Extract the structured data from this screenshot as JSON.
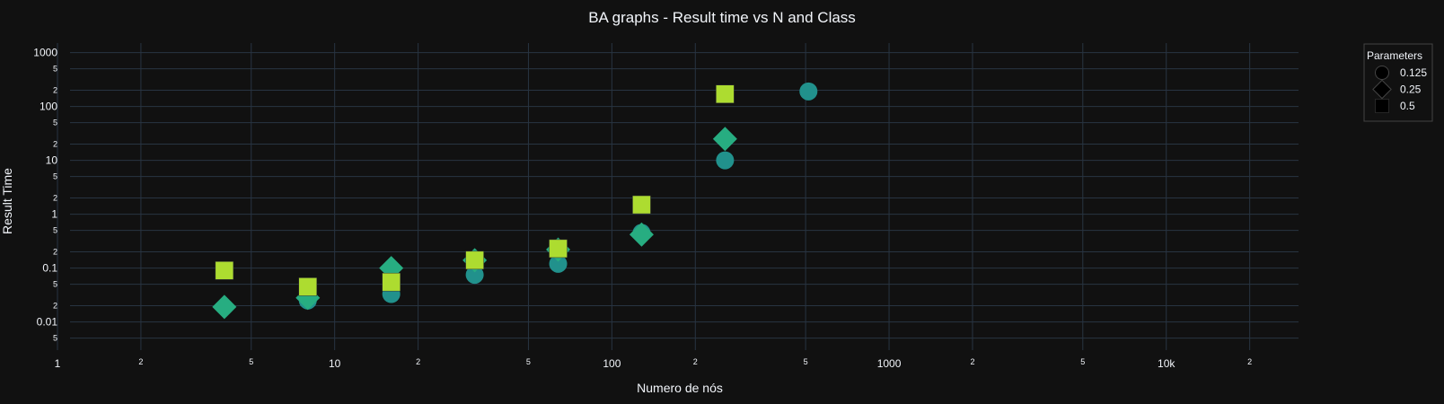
{
  "chart_data": {
    "type": "scatter",
    "title": "BA graphs - Result time vs N and Class",
    "xlabel": "Numero de nós",
    "ylabel": "Result Time",
    "x_scale": "log",
    "y_scale": "log",
    "xlim": [
      1,
      30000
    ],
    "ylim": [
      0.003,
      1500
    ],
    "grid": true,
    "legend_title": "Parameters",
    "legend_position": "top-right",
    "x_ticks": {
      "major": [
        {
          "v": 1,
          "label": "1"
        },
        {
          "v": 10,
          "label": "10"
        },
        {
          "v": 100,
          "label": "100"
        },
        {
          "v": 1000,
          "label": "1000"
        },
        {
          "v": 10000,
          "label": "10k"
        }
      ],
      "minor": [
        {
          "v": 2,
          "label": "2"
        },
        {
          "v": 5,
          "label": "5"
        },
        {
          "v": 20,
          "label": "2"
        },
        {
          "v": 50,
          "label": "5"
        },
        {
          "v": 200,
          "label": "2"
        },
        {
          "v": 500,
          "label": "5"
        },
        {
          "v": 2000,
          "label": "2"
        },
        {
          "v": 5000,
          "label": "5"
        },
        {
          "v": 20000,
          "label": "2"
        }
      ]
    },
    "y_ticks": {
      "major": [
        {
          "v": 0.01,
          "label": "0.01"
        },
        {
          "v": 0.1,
          "label": "0.1"
        },
        {
          "v": 1,
          "label": "1"
        },
        {
          "v": 10,
          "label": "10"
        },
        {
          "v": 100,
          "label": "100"
        },
        {
          "v": 1000,
          "label": "1000"
        }
      ],
      "minor": [
        {
          "v": 0.005,
          "label": "5"
        },
        {
          "v": 0.02,
          "label": "2"
        },
        {
          "v": 0.05,
          "label": "5"
        },
        {
          "v": 0.2,
          "label": "2"
        },
        {
          "v": 0.5,
          "label": "5"
        },
        {
          "v": 2,
          "label": "2"
        },
        {
          "v": 5,
          "label": "5"
        },
        {
          "v": 20,
          "label": "2"
        },
        {
          "v": 50,
          "label": "5"
        },
        {
          "v": 200,
          "label": "2"
        },
        {
          "v": 500,
          "label": "5"
        }
      ]
    },
    "series": [
      {
        "name": "0.125",
        "symbol": "circle",
        "color": "#21918c",
        "points": [
          [
            8,
            0.025
          ],
          [
            16,
            0.033
          ],
          [
            32,
            0.075
          ],
          [
            64,
            0.12
          ],
          [
            128,
            0.45
          ],
          [
            256,
            10
          ],
          [
            512,
            190
          ]
        ]
      },
      {
        "name": "0.25",
        "symbol": "diamond",
        "color": "#27ad81",
        "points": [
          [
            4,
            0.019
          ],
          [
            8,
            0.028
          ],
          [
            16,
            0.1
          ],
          [
            32,
            0.14
          ],
          [
            64,
            0.22
          ],
          [
            128,
            0.42
          ],
          [
            256,
            25
          ]
        ]
      },
      {
        "name": "0.5",
        "symbol": "square",
        "color": "#addc30",
        "points": [
          [
            4,
            0.09
          ],
          [
            8,
            0.045
          ],
          [
            16,
            0.055
          ],
          [
            32,
            0.14
          ],
          [
            64,
            0.23
          ],
          [
            128,
            1.5
          ],
          [
            256,
            170
          ]
        ]
      }
    ]
  }
}
